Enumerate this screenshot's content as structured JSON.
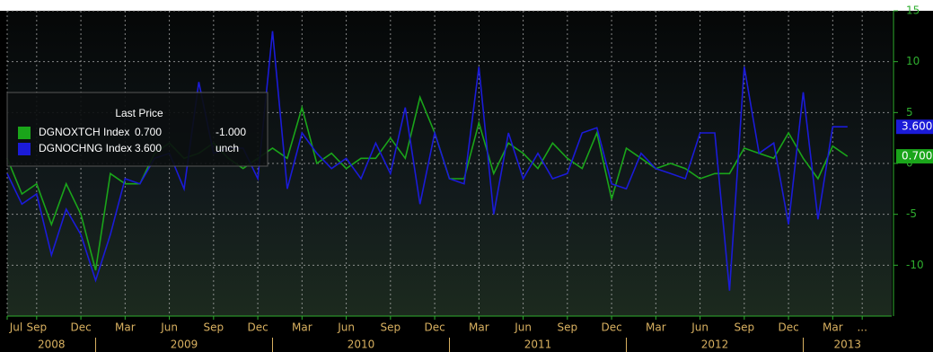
{
  "chart_data": {
    "type": "line",
    "legend_title": "Last Price",
    "x": [
      "2008-07",
      "2008-08",
      "2008-09",
      "2008-10",
      "2008-11",
      "2008-12",
      "2009-01",
      "2009-02",
      "2009-03",
      "2009-04",
      "2009-05",
      "2009-06",
      "2009-07",
      "2009-08",
      "2009-09",
      "2009-10",
      "2009-11",
      "2009-12",
      "2010-01",
      "2010-02",
      "2010-03",
      "2010-04",
      "2010-05",
      "2010-06",
      "2010-07",
      "2010-08",
      "2010-09",
      "2010-10",
      "2010-11",
      "2010-12",
      "2011-01",
      "2011-02",
      "2011-03",
      "2011-04",
      "2011-05",
      "2011-06",
      "2011-07",
      "2011-08",
      "2011-09",
      "2011-10",
      "2011-11",
      "2011-12",
      "2012-01",
      "2012-02",
      "2012-03",
      "2012-04",
      "2012-05",
      "2012-06",
      "2012-07",
      "2012-08",
      "2012-09",
      "2012-10",
      "2012-11",
      "2012-12",
      "2013-01",
      "2013-02",
      "2013-03",
      "2013-04"
    ],
    "series": [
      {
        "name": "DGNOXTCH Index",
        "color": "#1aa51a",
        "last_label": "0.700",
        "change_label": "-1.000",
        "values": [
          0.5,
          -3,
          -2,
          -6,
          -2,
          -5,
          -10.5,
          -1,
          -2,
          -2,
          1,
          2,
          0.5,
          1,
          2,
          0.5,
          -0.5,
          0.5,
          1.5,
          0.5,
          5.5,
          0,
          1,
          -0.5,
          0.5,
          0.5,
          2.5,
          0.5,
          6.5,
          3,
          -1.5,
          -1.5,
          4,
          -1,
          2,
          1,
          -0.5,
          2,
          0.5,
          -0.5,
          3,
          -3.5,
          1.5,
          0.5,
          -0.5,
          0,
          -0.5,
          -1.5,
          -1,
          -1,
          1.5,
          1,
          0.5,
          3,
          0.5,
          -1.5,
          1.7,
          0.7
        ]
      },
      {
        "name": "DGNOCHNG Index",
        "color": "#1b1bd8",
        "last_label": "3.600",
        "change_label": "unch",
        "values": [
          -1,
          -4,
          -3,
          -9,
          -4.5,
          -7,
          -11.5,
          -7,
          -1.5,
          -2,
          0.5,
          1,
          -2.5,
          8,
          1,
          1.5,
          1.5,
          -1.5,
          13,
          -2.5,
          3,
          1,
          -0.5,
          0.5,
          -1.5,
          2,
          -1,
          5.5,
          -4,
          3,
          -1.5,
          -2,
          9.5,
          -5,
          3,
          -1.5,
          1,
          -1.5,
          -1,
          3,
          3.5,
          -2,
          -2.5,
          1,
          -0.5,
          -1,
          -1.5,
          3,
          3,
          -12.5,
          9.5,
          1,
          2,
          -6,
          7,
          -5.5,
          3.6,
          3.6
        ]
      }
    ],
    "xlim": [
      "2008-07",
      "2013-07"
    ],
    "xticks": [
      {
        "value": "2008-07",
        "label": "Jul"
      },
      {
        "value": "2008-09",
        "label": "Sep"
      },
      {
        "value": "2008-12",
        "label": "Dec"
      },
      {
        "value": "2009-03",
        "label": "Mar"
      },
      {
        "value": "2009-06",
        "label": "Jun"
      },
      {
        "value": "2009-09",
        "label": "Sep"
      },
      {
        "value": "2009-12",
        "label": "Dec"
      },
      {
        "value": "2010-03",
        "label": "Mar"
      },
      {
        "value": "2010-06",
        "label": "Jun"
      },
      {
        "value": "2010-09",
        "label": "Sep"
      },
      {
        "value": "2010-12",
        "label": "Dec"
      },
      {
        "value": "2011-03",
        "label": "Mar"
      },
      {
        "value": "2011-06",
        "label": "Jun"
      },
      {
        "value": "2011-09",
        "label": "Sep"
      },
      {
        "value": "2011-12",
        "label": "Dec"
      },
      {
        "value": "2012-03",
        "label": "Mar"
      },
      {
        "value": "2012-06",
        "label": "Jun"
      },
      {
        "value": "2012-09",
        "label": "Sep"
      },
      {
        "value": "2012-12",
        "label": "Dec"
      },
      {
        "value": "2013-03",
        "label": "Mar"
      },
      {
        "value": "2013-05",
        "label": "..."
      }
    ],
    "year_ticks": [
      2008,
      2009,
      2010,
      2011,
      2012,
      2013
    ],
    "ylim": [
      -15,
      15
    ],
    "yticks": [
      -10,
      -5,
      0,
      5,
      10,
      15
    ],
    "grid": true
  }
}
